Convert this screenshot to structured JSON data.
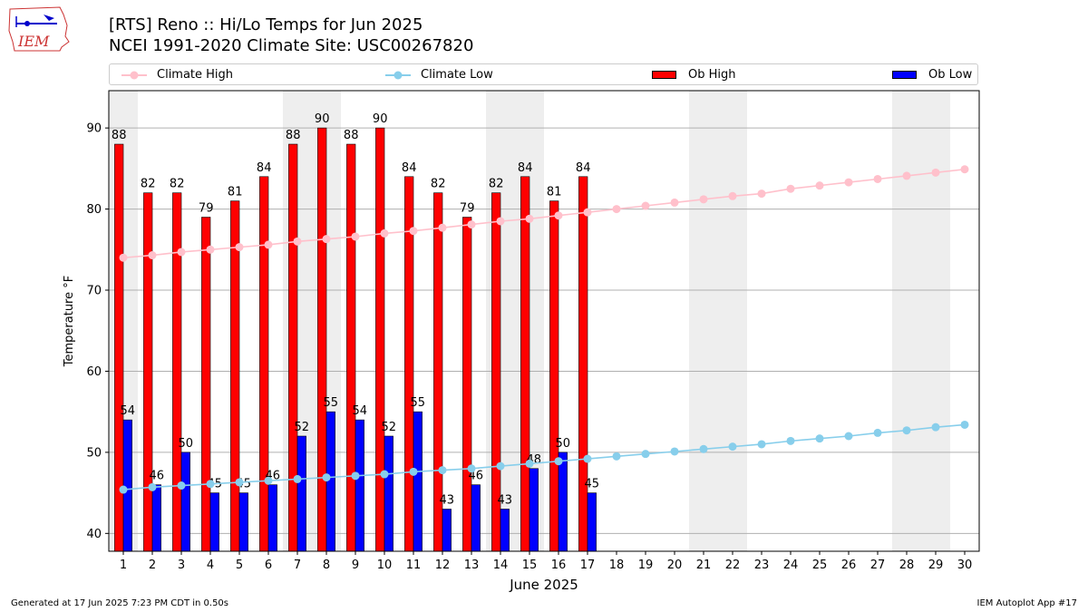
{
  "header": {
    "logo_text": "IEM",
    "title_line1": "[RTS] Reno :: Hi/Lo Temps for Jun 2025",
    "title_line2": "NCEI 1991-2020 Climate Site: USC00267820"
  },
  "legend": {
    "placement": "top, above plot",
    "items": [
      {
        "label": "Climate High",
        "kind": "line-marker",
        "color": "#ffc0cb"
      },
      {
        "label": "Climate Low",
        "kind": "line-marker",
        "color": "#87ceeb"
      },
      {
        "label": "Ob High",
        "kind": "bar",
        "color": "#ff0000"
      },
      {
        "label": "Ob Low",
        "kind": "bar",
        "color": "#0000ff"
      }
    ]
  },
  "footer": {
    "left": "Generated at 17 Jun 2025 7:23 PM CDT in 0.50s",
    "right": "IEM Autoplot App #17"
  },
  "chart_data": {
    "type": "bar",
    "xlabel": "June 2025",
    "ylabel": "Temperature °F",
    "xlim": [
      0.5,
      30.5
    ],
    "ylim": [
      37.8,
      94.6
    ],
    "yticks": [
      40,
      50,
      60,
      70,
      80,
      90
    ],
    "grid": "horizontal",
    "days": [
      1,
      2,
      3,
      4,
      5,
      6,
      7,
      8,
      9,
      10,
      11,
      12,
      13,
      14,
      15,
      16,
      17,
      18,
      19,
      20,
      21,
      22,
      23,
      24,
      25,
      26,
      27,
      28,
      29,
      30
    ],
    "weekend_shading": [
      [
        1,
        1
      ],
      [
        7,
        8
      ],
      [
        14,
        15
      ],
      [
        21,
        22
      ],
      [
        28,
        29
      ]
    ],
    "shade_color": "#eeeeee",
    "series": [
      {
        "name": "Ob High",
        "kind": "bar",
        "color": "#ff0000",
        "values": [
          88,
          82,
          82,
          79,
          81,
          84,
          88,
          90,
          88,
          90,
          84,
          82,
          79,
          82,
          84,
          81,
          84
        ]
      },
      {
        "name": "Ob Low",
        "kind": "bar",
        "color": "#0000ff",
        "values": [
          54,
          46,
          50,
          45,
          45,
          46,
          52,
          55,
          54,
          52,
          55,
          43,
          46,
          43,
          48,
          50,
          45
        ]
      },
      {
        "name": "Climate High",
        "kind": "line",
        "color": "#ffc0cb",
        "values": [
          74.0,
          74.3,
          74.7,
          75.0,
          75.3,
          75.6,
          76.0,
          76.3,
          76.6,
          77.0,
          77.3,
          77.7,
          78.1,
          78.5,
          78.8,
          79.2,
          79.6,
          80.0,
          80.4,
          80.8,
          81.2,
          81.6,
          81.9,
          82.5,
          82.9,
          83.3,
          83.7,
          84.1,
          84.5,
          84.9
        ]
      },
      {
        "name": "Climate Low",
        "kind": "line",
        "color": "#87ceeb",
        "values": [
          45.4,
          45.7,
          45.9,
          46.1,
          46.3,
          46.5,
          46.7,
          46.9,
          47.1,
          47.3,
          47.6,
          47.8,
          48.0,
          48.3,
          48.6,
          48.9,
          49.2,
          49.5,
          49.8,
          50.1,
          50.4,
          50.7,
          51.0,
          51.4,
          51.7,
          52.0,
          52.4,
          52.7,
          53.1,
          53.4
        ]
      }
    ]
  }
}
